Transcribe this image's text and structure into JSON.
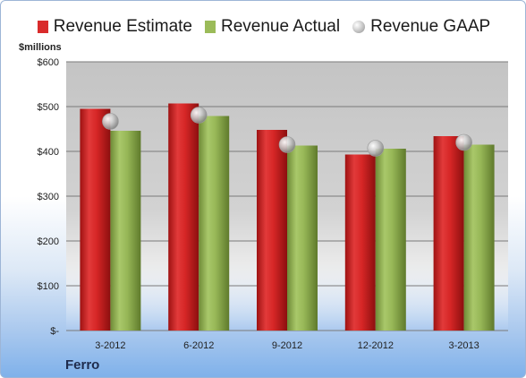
{
  "chart_data": {
    "type": "bar",
    "unit_label": "$millions",
    "categories": [
      "3-2012",
      "6-2012",
      "9-2012",
      "12-2012",
      "3-2013"
    ],
    "y_ticks": [
      "$-",
      "$100",
      "$200",
      "$300",
      "$400",
      "$500",
      "$600"
    ],
    "ylim": [
      0,
      600
    ],
    "grid": true,
    "legend_position": "top",
    "series": [
      {
        "name": "Revenue Estimate",
        "type": "bar",
        "color": "#d92b2b",
        "values": [
          495,
          507,
          448,
          393,
          434
        ]
      },
      {
        "name": "Revenue Actual",
        "type": "bar",
        "color": "#9bbb59",
        "values": [
          446,
          479,
          413,
          406,
          415
        ]
      },
      {
        "name": "Revenue GAAP",
        "type": "scatter",
        "color": "#c0c0c0",
        "values": [
          467,
          481,
          415,
          407,
          420
        ]
      }
    ],
    "company": "Ferro"
  }
}
